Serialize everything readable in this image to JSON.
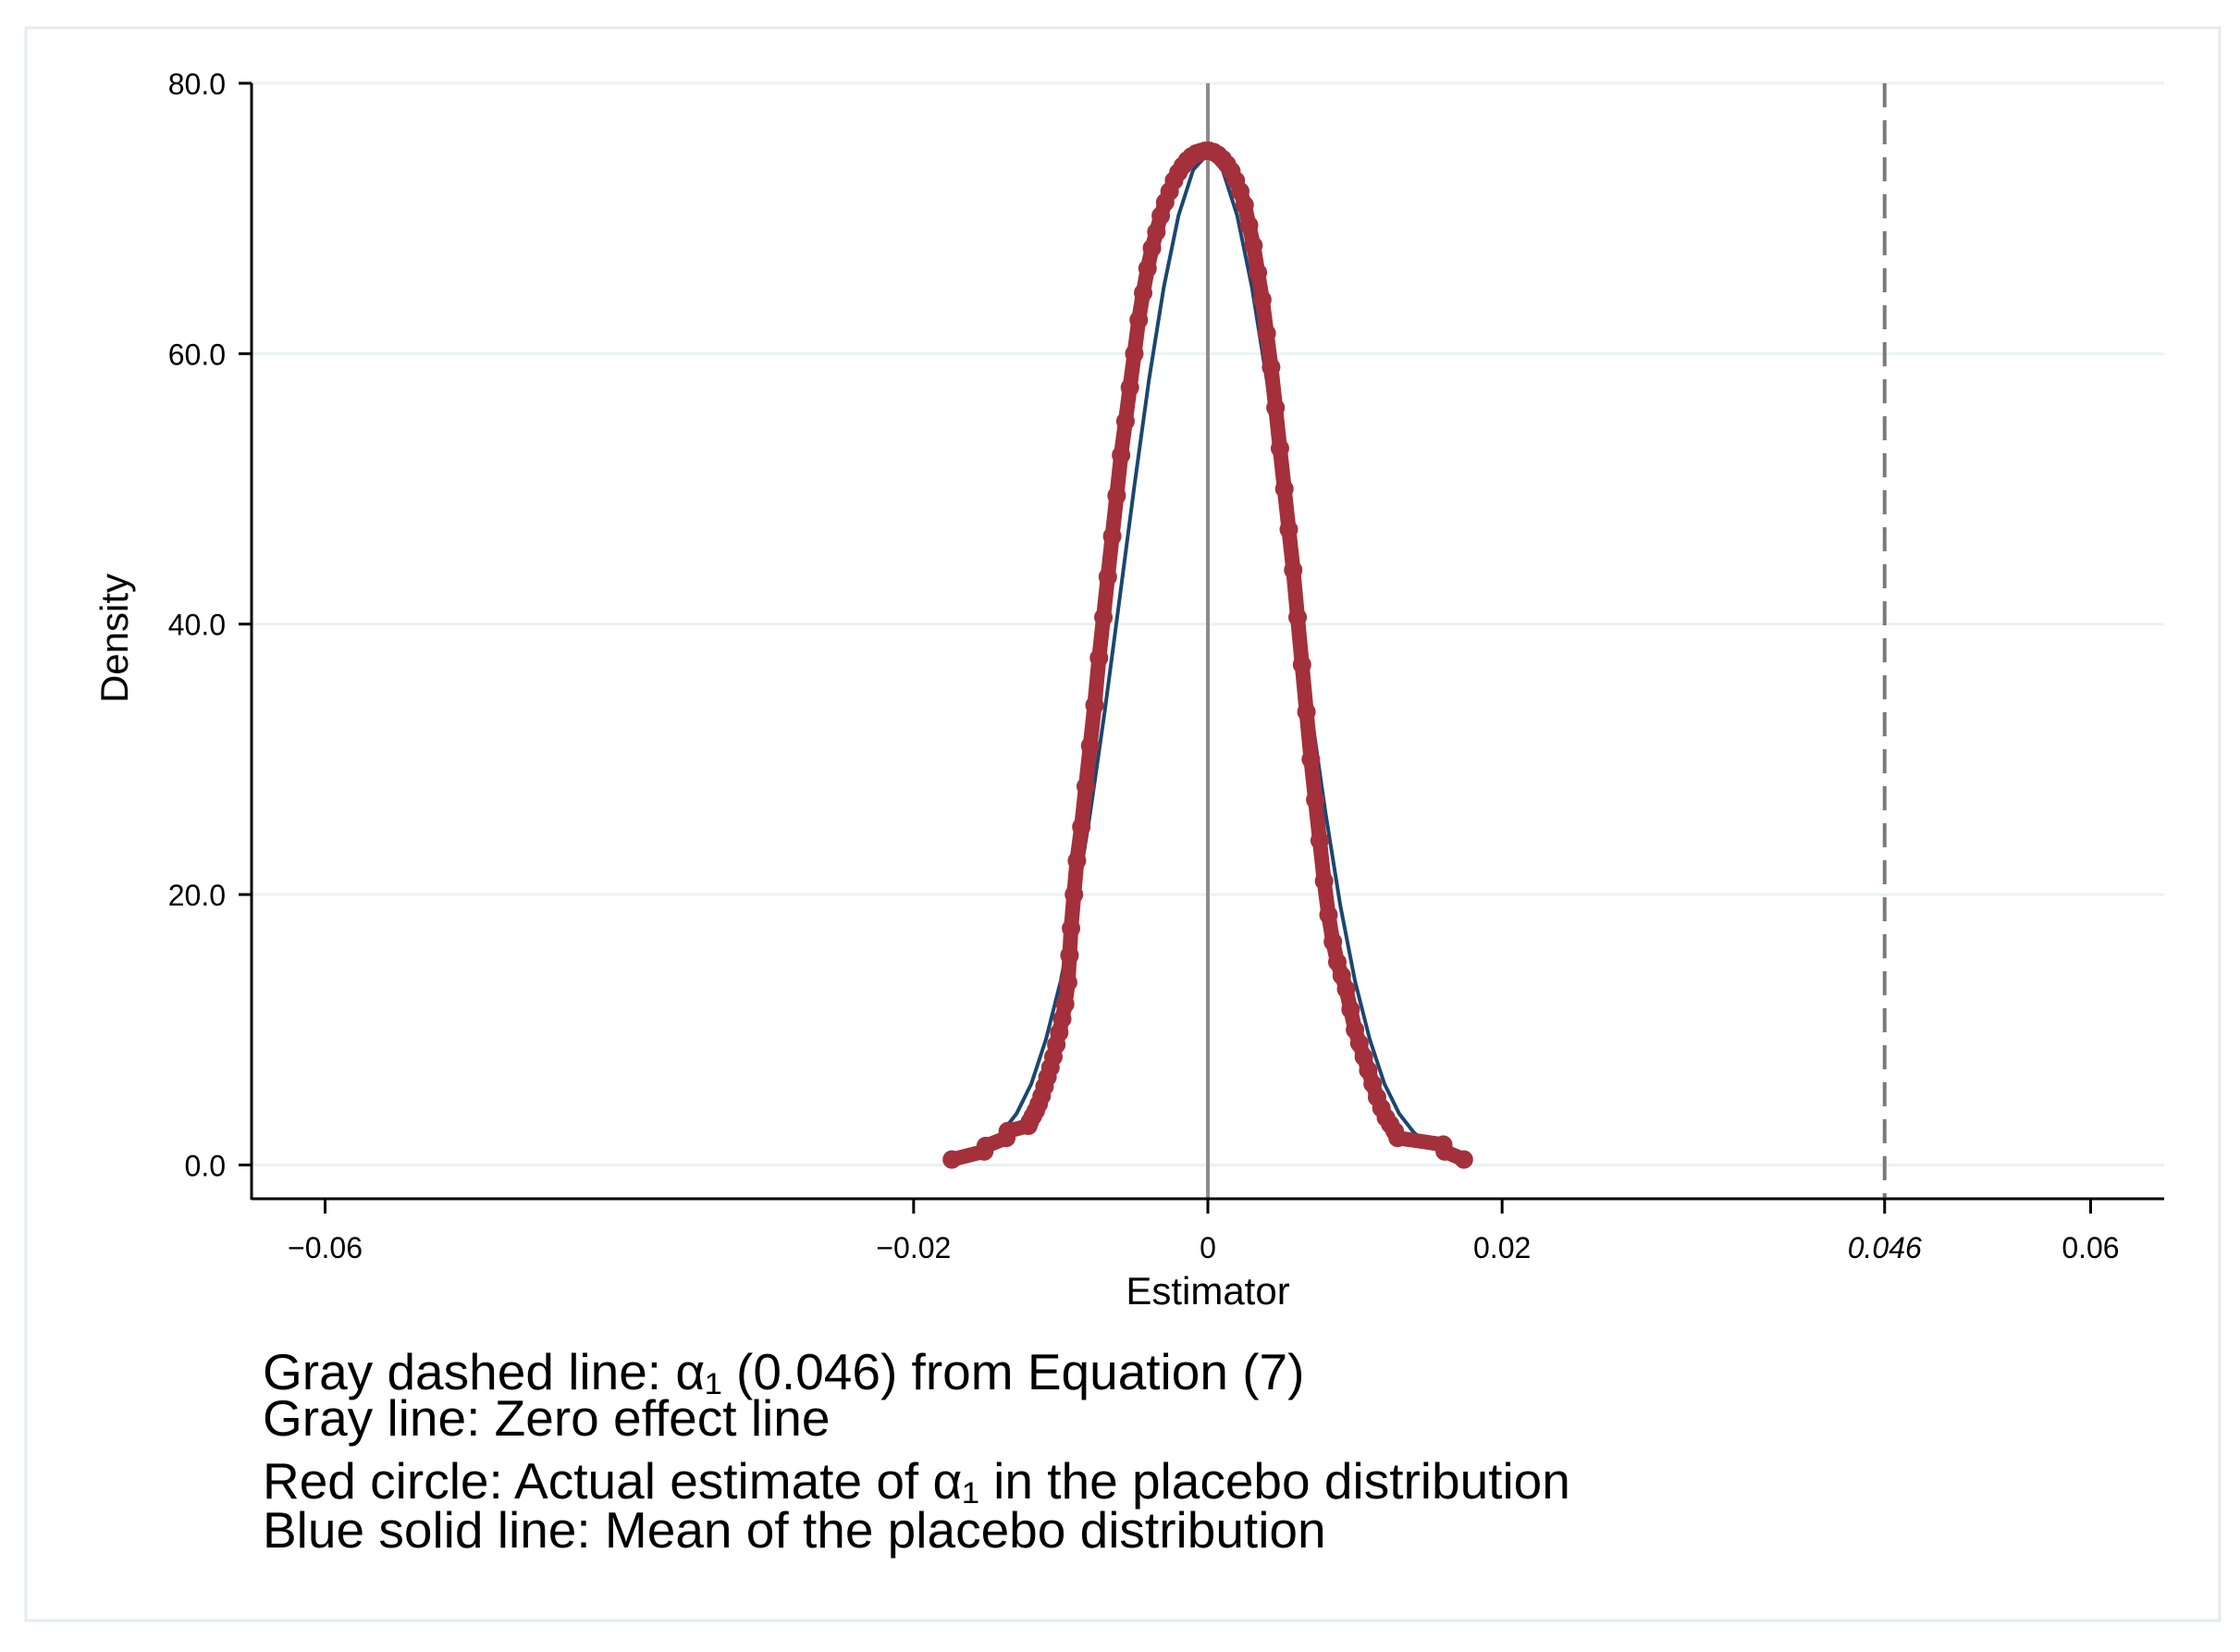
{
  "chart_data": {
    "type": "line",
    "xlabel": "Estimator",
    "ylabel": "Density",
    "xlim": [
      -0.065,
      0.065
    ],
    "ylim": [
      -2.5,
      80
    ],
    "grid": true,
    "x_ticks": [
      {
        "value": -0.06,
        "label": "−0.06",
        "italic": false
      },
      {
        "value": -0.02,
        "label": "−0.02",
        "italic": false
      },
      {
        "value": 0,
        "label": "0",
        "italic": false
      },
      {
        "value": 0.02,
        "label": "0.02",
        "italic": false
      },
      {
        "value": 0.046,
        "label": "0.046",
        "italic": true
      },
      {
        "value": 0.06,
        "label": "0.06",
        "italic": false
      }
    ],
    "y_ticks": [
      {
        "value": 0,
        "label": "0.0"
      },
      {
        "value": 20,
        "label": "20.0"
      },
      {
        "value": 40,
        "label": "40.0"
      },
      {
        "value": 60,
        "label": "60.0"
      },
      {
        "value": 80,
        "label": "80.0"
      }
    ],
    "reference_lines": [
      {
        "name": "zero-effect-line",
        "x": 0,
        "style": "solid",
        "color": "#8c8c8c"
      },
      {
        "name": "alpha1-line",
        "x": 0.046,
        "style": "dashed",
        "color": "#7a7a7a"
      }
    ],
    "series": [
      {
        "kind": "mean-line",
        "color": "#1a476f",
        "points": [
          [
            -0.0175,
            0.3
          ],
          [
            -0.016,
            0.9
          ],
          [
            -0.015,
            1.5
          ],
          [
            -0.014,
            2.4
          ],
          [
            -0.013,
            3.8
          ],
          [
            -0.012,
            6.0
          ],
          [
            -0.011,
            9.3
          ],
          [
            -0.01,
            13.6
          ],
          [
            -0.009,
            19.2
          ],
          [
            -0.008,
            26.0
          ],
          [
            -0.007,
            33.6
          ],
          [
            -0.006,
            41.9
          ],
          [
            -0.005,
            50.2
          ],
          [
            -0.004,
            58.1
          ],
          [
            -0.003,
            64.9
          ],
          [
            -0.002,
            70.2
          ],
          [
            -0.001,
            73.6
          ],
          [
            0,
            74.8
          ],
          [
            0.001,
            73.6
          ],
          [
            0.002,
            70.2
          ],
          [
            0.003,
            64.9
          ],
          [
            0.004,
            58.1
          ],
          [
            0.005,
            50.2
          ],
          [
            0.006,
            41.9
          ],
          [
            0.007,
            33.6
          ],
          [
            0.008,
            26.0
          ],
          [
            0.009,
            19.2
          ],
          [
            0.01,
            13.6
          ],
          [
            0.011,
            9.3
          ],
          [
            0.012,
            6.0
          ],
          [
            0.013,
            3.8
          ],
          [
            0.014,
            2.4
          ],
          [
            0.015,
            1.5
          ],
          [
            0.016,
            0.9
          ],
          [
            0.0175,
            0.3
          ]
        ]
      },
      {
        "kind": "estimate-markers",
        "color": "#a3303a",
        "points": [
          [
            -0.0174,
            0.4
          ],
          [
            -0.0152,
            1.0
          ],
          [
            -0.0151,
            1.4
          ],
          [
            -0.0137,
            2.0
          ],
          [
            -0.0136,
            2.5
          ],
          [
            -0.0122,
            2.9
          ],
          [
            -0.0121,
            3.2
          ],
          [
            -0.0119,
            3.6
          ],
          [
            -0.0117,
            4.0
          ],
          [
            -0.0115,
            4.5
          ],
          [
            -0.0113,
            5.1
          ],
          [
            -0.0111,
            5.8
          ],
          [
            -0.0109,
            6.5
          ],
          [
            -0.0107,
            7.2
          ],
          [
            -0.0105,
            8.0
          ],
          [
            -0.0103,
            8.9
          ],
          [
            -0.0101,
            9.8
          ],
          [
            -0.0099,
            10.8
          ],
          [
            -0.0097,
            11.9
          ],
          [
            -0.0095,
            13.5
          ],
          [
            -0.0094,
            15.5
          ],
          [
            -0.0093,
            17.5
          ],
          [
            -0.0091,
            20.0
          ],
          [
            -0.0089,
            22.5
          ],
          [
            -0.0086,
            25.0
          ],
          [
            -0.0083,
            28.0
          ],
          [
            -0.008,
            31.0
          ],
          [
            -0.0077,
            34.0
          ],
          [
            -0.0074,
            37.5
          ],
          [
            -0.0071,
            40.5
          ],
          [
            -0.0068,
            43.5
          ],
          [
            -0.0065,
            46.5
          ],
          [
            -0.0062,
            49.5
          ],
          [
            -0.0059,
            52.5
          ],
          [
            -0.0056,
            55.0
          ],
          [
            -0.0053,
            57.5
          ],
          [
            -0.005,
            60.0
          ],
          [
            -0.0047,
            62.5
          ],
          [
            -0.0044,
            64.5
          ],
          [
            -0.0041,
            66.3
          ],
          [
            -0.0038,
            67.8
          ],
          [
            -0.0035,
            69.0
          ],
          [
            -0.0032,
            70.2
          ],
          [
            -0.0029,
            71.2
          ],
          [
            -0.0026,
            72.0
          ],
          [
            -0.0023,
            72.8
          ],
          [
            -0.002,
            73.4
          ],
          [
            -0.0017,
            73.9
          ],
          [
            -0.0014,
            74.3
          ],
          [
            -0.0011,
            74.6
          ],
          [
            -0.0008,
            74.8
          ],
          [
            -0.0005,
            74.9
          ],
          [
            -0.0002,
            75.0
          ],
          [
            0.0001,
            75.0
          ],
          [
            0.0004,
            74.9
          ],
          [
            0.0007,
            74.7
          ],
          [
            0.001,
            74.4
          ],
          [
            0.0013,
            74.0
          ],
          [
            0.0016,
            73.5
          ],
          [
            0.0019,
            72.8
          ],
          [
            0.0022,
            72.0
          ],
          [
            0.0025,
            71.0
          ],
          [
            0.0028,
            69.5
          ],
          [
            0.0031,
            68.0
          ],
          [
            0.0034,
            66.0
          ],
          [
            0.0037,
            64.0
          ],
          [
            0.004,
            61.5
          ],
          [
            0.0043,
            59.0
          ],
          [
            0.0046,
            56.0
          ],
          [
            0.0049,
            53.0
          ],
          [
            0.0052,
            50.0
          ],
          [
            0.0055,
            47.0
          ],
          [
            0.0058,
            44.0
          ],
          [
            0.0061,
            40.5
          ],
          [
            0.0064,
            37.0
          ],
          [
            0.0067,
            33.5
          ],
          [
            0.007,
            30.0
          ],
          [
            0.0073,
            27.0
          ],
          [
            0.0076,
            24.0
          ],
          [
            0.0079,
            21.0
          ],
          [
            0.0082,
            18.5
          ],
          [
            0.0085,
            16.5
          ],
          [
            0.0088,
            15.0
          ],
          [
            0.0091,
            14.0
          ],
          [
            0.0094,
            13.0
          ],
          [
            0.0097,
            11.5
          ],
          [
            0.01,
            10.0
          ],
          [
            0.0103,
            9.0
          ],
          [
            0.0106,
            8.0
          ],
          [
            0.0109,
            7.0
          ],
          [
            0.0112,
            6.0
          ],
          [
            0.0115,
            5.0
          ],
          [
            0.0118,
            4.2
          ],
          [
            0.0121,
            3.5
          ],
          [
            0.0124,
            3.0
          ],
          [
            0.0127,
            2.5
          ],
          [
            0.0129,
            2.0
          ],
          [
            0.016,
            1.5
          ],
          [
            0.0161,
            1.0
          ],
          [
            0.0174,
            0.4
          ]
        ]
      }
    ],
    "notes": [
      {
        "text": "Gray dashed line: α₁ (0.046) from Equation (7)"
      },
      {
        "text": "Gray line: Zero effect line"
      },
      {
        "text": "Red circle: Actual estimate of α₁ in the placebo distribution"
      },
      {
        "text": "Blue solid line: Mean of the placebo distribution"
      }
    ]
  }
}
